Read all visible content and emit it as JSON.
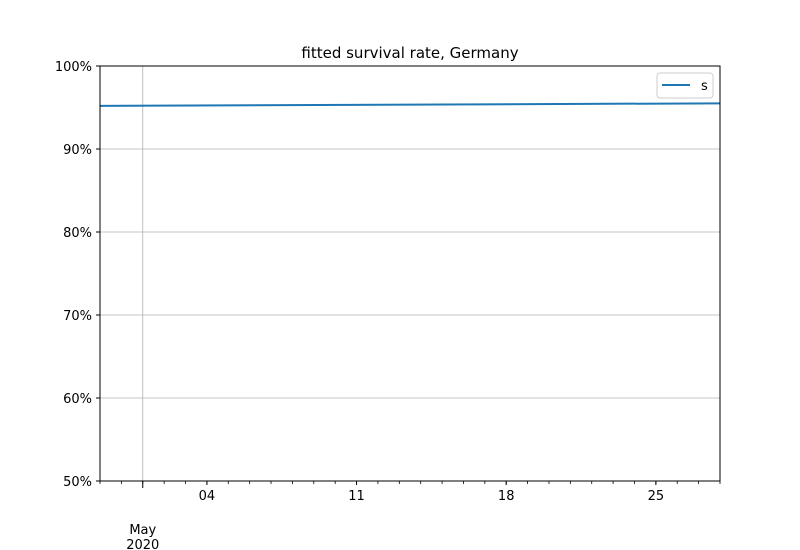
{
  "chart_data": {
    "type": "line",
    "title": "fitted survival rate, Germany",
    "xlabel": "",
    "ylabel": "",
    "x_start": "2020-04-29",
    "x_end": "2020-05-28",
    "xlim": [
      "2020-04-29",
      "2020-05-28"
    ],
    "ylim": [
      50,
      100
    ],
    "y_unit": "%",
    "y_ticks": [
      50,
      60,
      70,
      80,
      90,
      100
    ],
    "y_tick_labels": [
      "50%",
      "60%",
      "70%",
      "80%",
      "90%",
      "100%"
    ],
    "x_major_ticks": [
      {
        "date": "2020-05-01",
        "label": "May",
        "sublabel": "2020"
      }
    ],
    "x_minor_ticks": [
      {
        "date": "2020-05-04",
        "label": "04"
      },
      {
        "date": "2020-05-11",
        "label": "11"
      },
      {
        "date": "2020-05-18",
        "label": "18"
      },
      {
        "date": "2020-05-25",
        "label": "25"
      }
    ],
    "grid": true,
    "legend_position": "top-right",
    "series": [
      {
        "name": "s",
        "color": "#1f77b4",
        "x": [
          "2020-04-29",
          "2020-05-28"
        ],
        "values": [
          95.2,
          95.5
        ]
      }
    ]
  }
}
